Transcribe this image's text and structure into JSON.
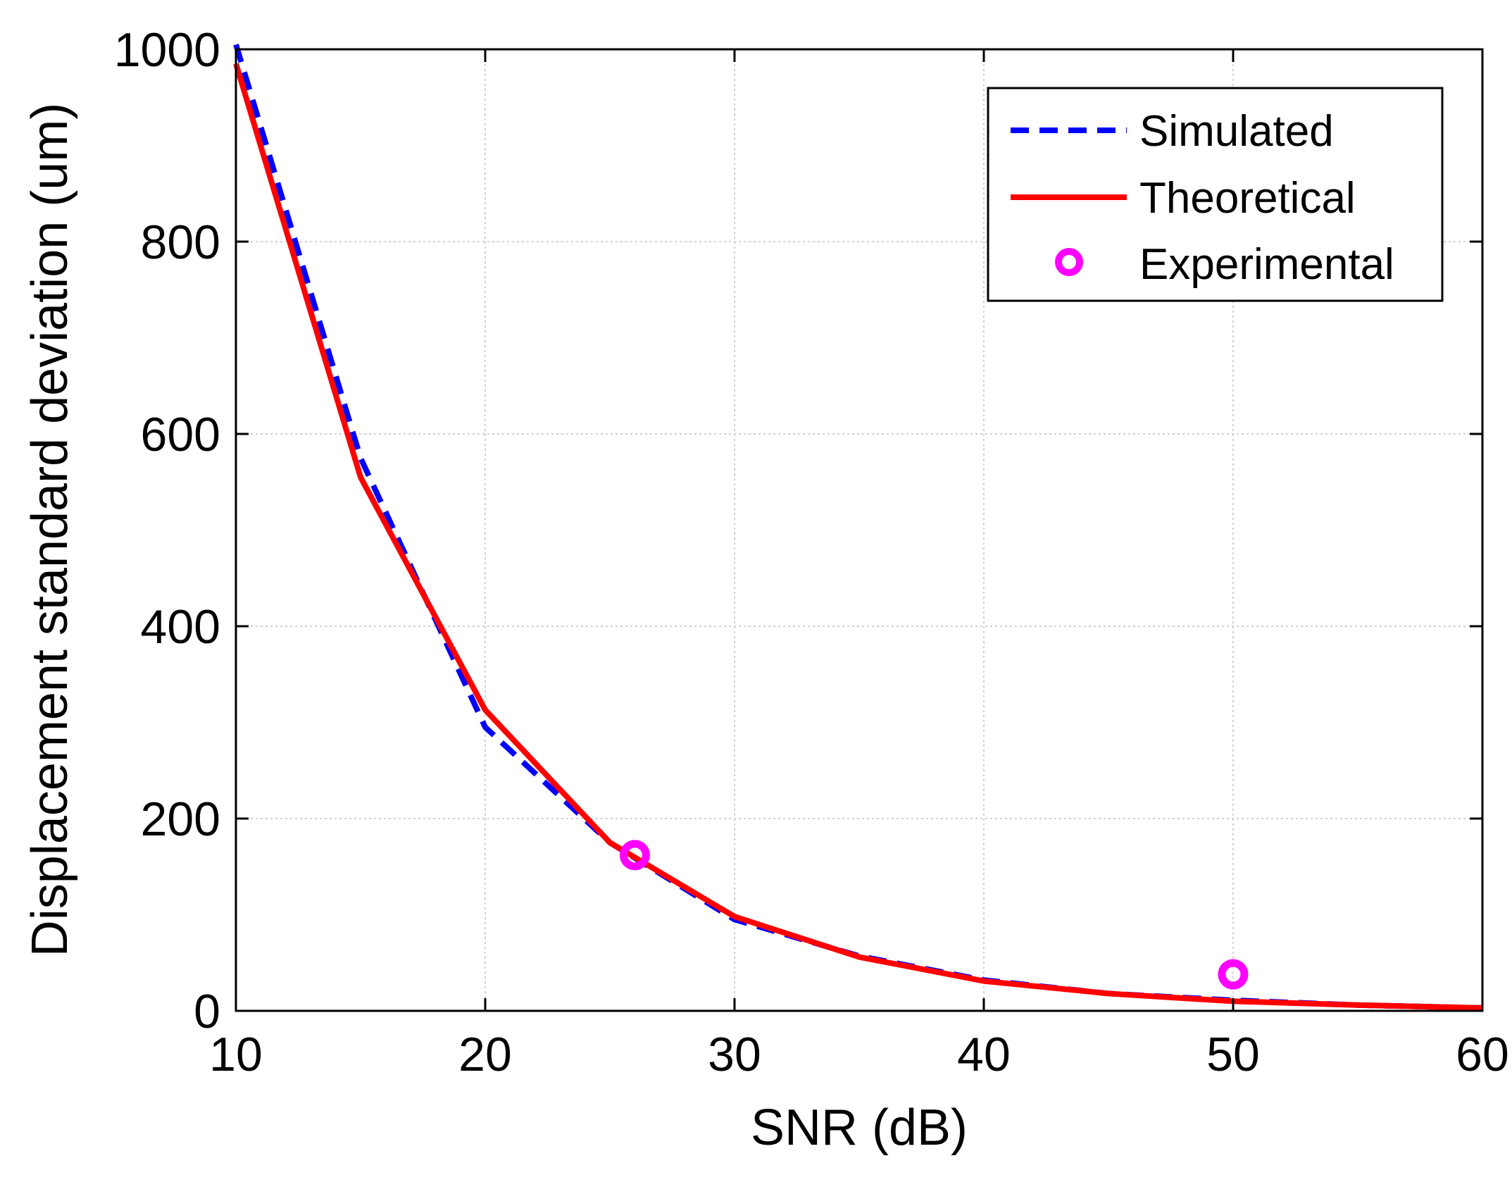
{
  "chart_data": {
    "type": "line",
    "title": "",
    "xlabel": "SNR (dB)",
    "ylabel": "Displacement standard deviation (um)",
    "xlim": [
      10,
      60
    ],
    "ylim": [
      0,
      1000
    ],
    "grid": true,
    "xticks": [
      10,
      20,
      30,
      40,
      50,
      60
    ],
    "yticks": [
      0,
      200,
      400,
      600,
      800,
      1000
    ],
    "xtick_labels": [
      "10",
      "20",
      "30",
      "40",
      "50",
      "60"
    ],
    "ytick_labels": [
      "0",
      "200",
      "400",
      "600",
      "800",
      "1000"
    ],
    "legend_position": "top-right",
    "series": [
      {
        "name": "Simulated",
        "style": "dashed",
        "color": "#0000ff",
        "x": [
          10,
          15,
          20,
          25,
          30,
          35,
          40,
          45,
          50,
          55,
          60
        ],
        "y": [
          1005,
          575,
          295,
          175,
          95,
          57,
          32,
          18,
          11,
          6,
          3
        ]
      },
      {
        "name": "Theoretical",
        "style": "solid",
        "color": "#ff0000",
        "x": [
          10,
          15,
          20,
          25,
          30,
          35,
          40,
          45,
          50,
          55,
          60
        ],
        "y": [
          985,
          555,
          313,
          175,
          98,
          56,
          31,
          18,
          10,
          6,
          3
        ]
      },
      {
        "name": "Experimental",
        "style": "marker",
        "marker": "circle",
        "color": "#ff00ff",
        "x": [
          26,
          50
        ],
        "y": [
          162,
          38
        ]
      }
    ]
  }
}
